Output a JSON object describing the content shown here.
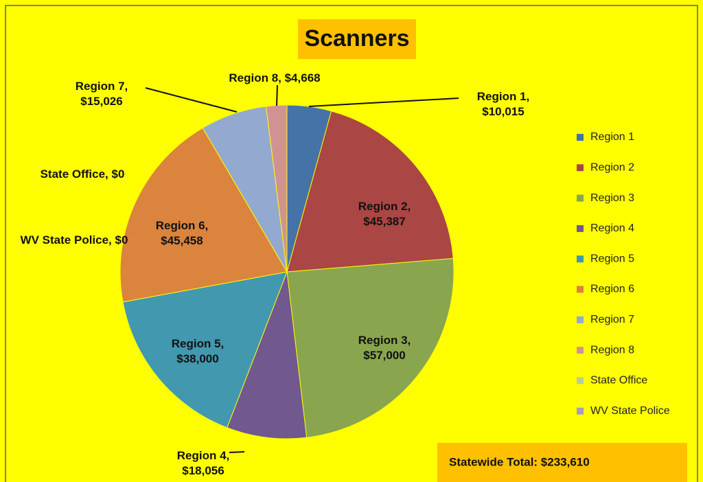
{
  "chart_data": {
    "type": "pie",
    "title": "Scanners",
    "categories": [
      "Region 1",
      "Region 2",
      "Region 3",
      "Region 4",
      "Region 5",
      "Region 6",
      "Region 7",
      "Region 8",
      "State Office",
      "WV State  Police"
    ],
    "values": [
      10015,
      45387,
      57000,
      18056,
      38000,
      45458,
      15026,
      4668,
      0,
      0
    ],
    "value_labels": [
      "Region 1, $10,015",
      "Region 2, $45,387",
      "Region 3, $57,000",
      "Region 4, $18,056",
      "Region 5, $38,000",
      "Region 6, $45,458",
      "Region 7, $15,026",
      "Region 8, $4,668",
      "State Office, $0",
      "WV State Police, $0"
    ],
    "colors": [
      "#4572a7",
      "#aa4643",
      "#89a54e",
      "#71588f",
      "#4198af",
      "#db843d",
      "#93a9cf",
      "#d19392",
      "#b9cd96",
      "#a99bbd"
    ],
    "legend": "right",
    "total_label": "Statewide Total:  $233,610"
  }
}
